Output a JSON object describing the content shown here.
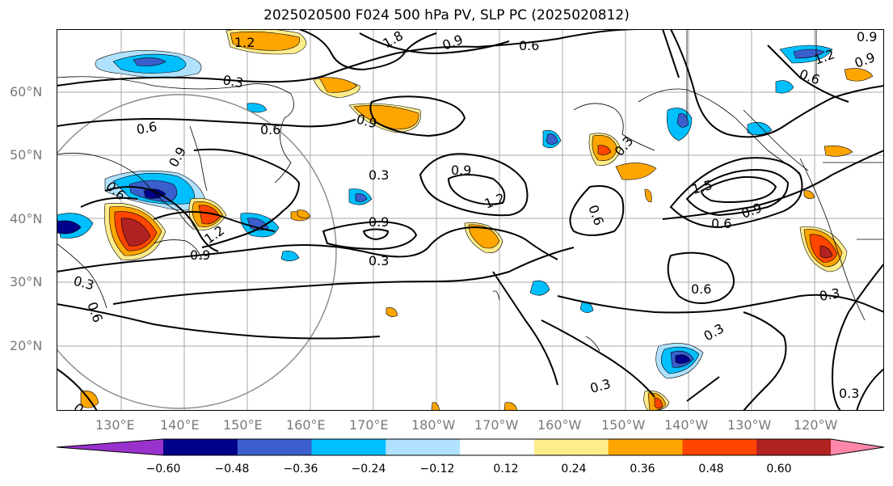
{
  "title": "2025020500 F024 500 hPa PV, SLP PC (2025020812)",
  "lat_labels": [
    "60°N",
    "50°N",
    "40°N",
    "30°N",
    "20°N"
  ],
  "lon_labels": [
    "130°E",
    "140°E",
    "150°E",
    "160°E",
    "170°E",
    "180°W",
    "170°W",
    "160°W",
    "150°W",
    "140°W",
    "130°W",
    "120°W"
  ],
  "contour_labels": [
    "0.3",
    "0.3",
    "0.3",
    "0.3",
    "0.3",
    "0.3",
    "0.3",
    "0.3",
    "0.3",
    "0.3",
    "0.6",
    "0.6",
    "0.6",
    "0.6",
    "0.6",
    "0.6",
    "0.6",
    "0.6",
    "0.6",
    "0.9",
    "0.9",
    "0.9",
    "0.9",
    "0.9",
    "0.9",
    "0.9",
    "0.9",
    "0.9",
    "1.2",
    "1.2",
    "1.2",
    "1.2",
    "1.5",
    "1.8"
  ],
  "colorbar": {
    "colors": [
      "#9932cc",
      "#00008b",
      "#3a5fcd",
      "#00bfff",
      "#b0e2ff",
      "#ffffff",
      "#ffec8b",
      "#ffa500",
      "#ff4500",
      "#b22222",
      "#ff88aa"
    ],
    "tick_labels": [
      "−0.60",
      "−0.48",
      "−0.36",
      "−0.24",
      "−0.12",
      "0.12",
      "0.24",
      "0.36",
      "0.48",
      "0.60"
    ]
  }
}
